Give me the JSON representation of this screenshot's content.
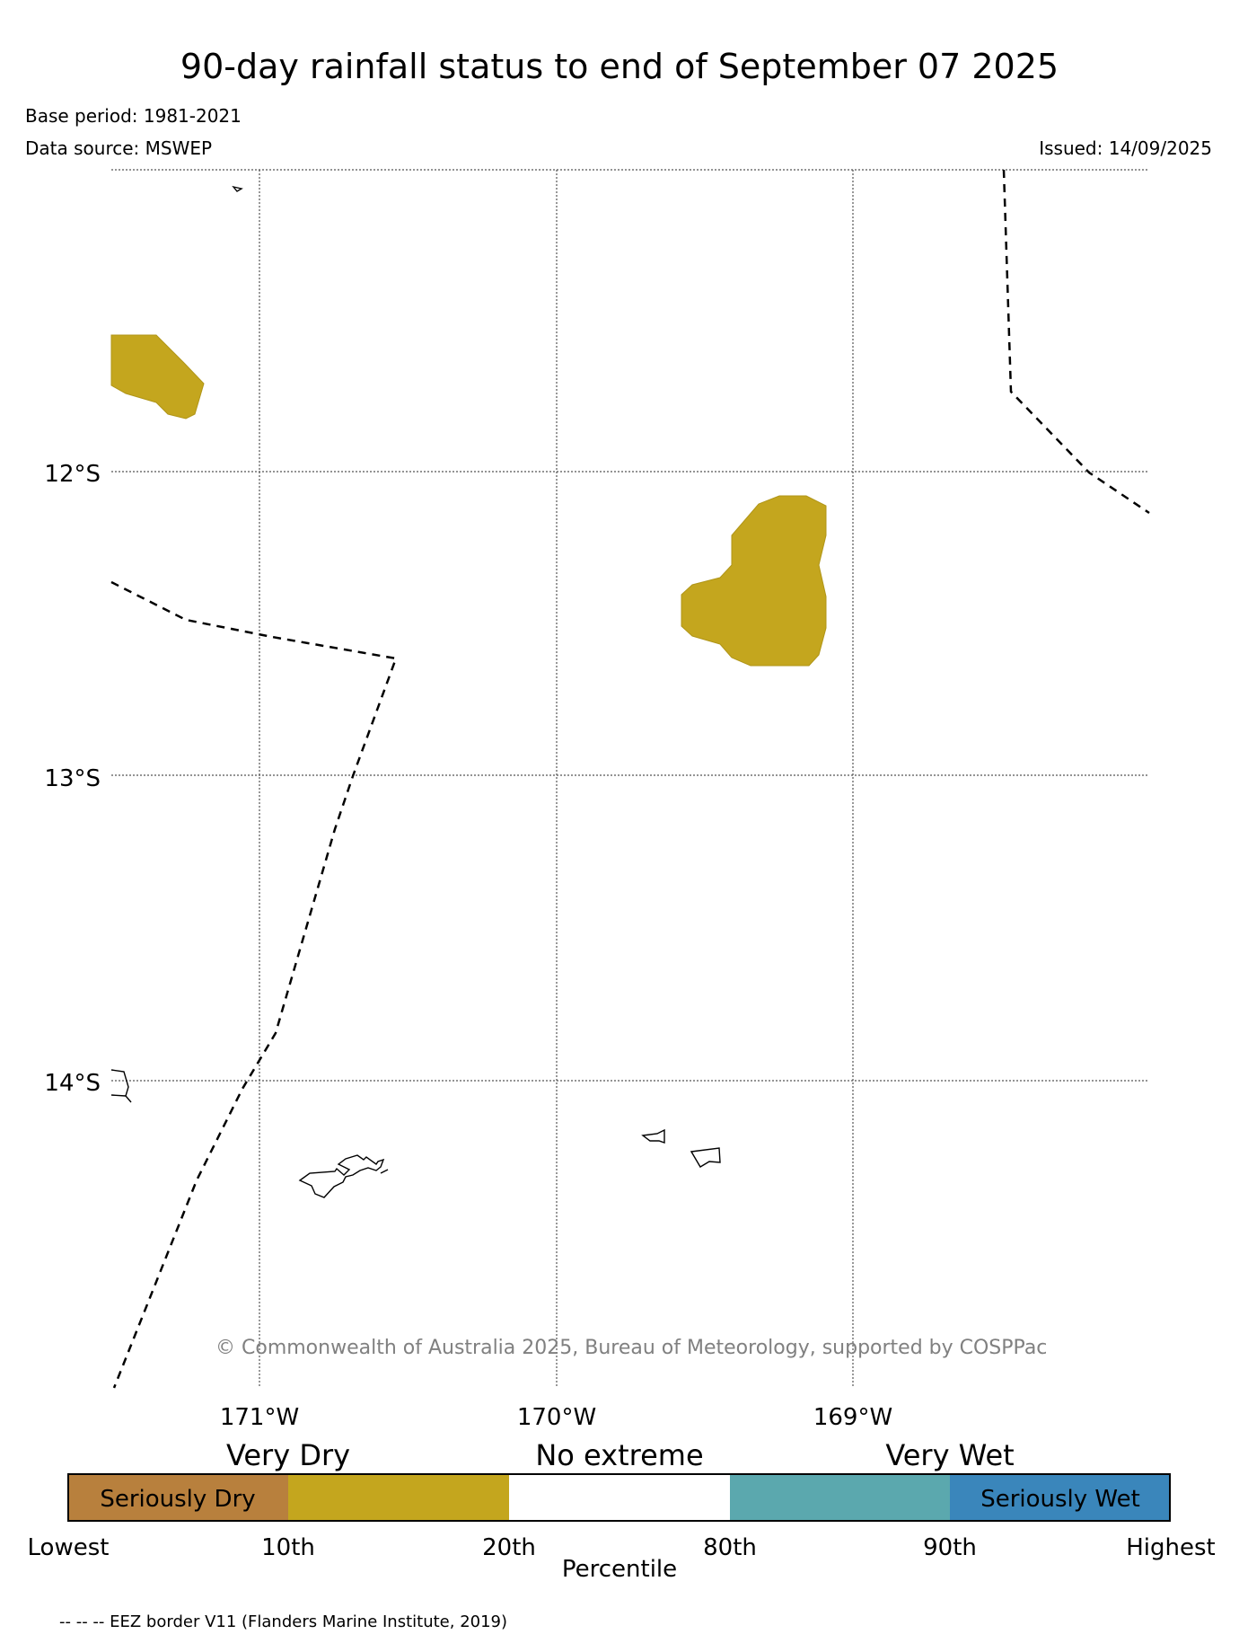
{
  "title": "90-day rainfall status to end of September 07 2025",
  "base_period": "Base period: 1981-2021",
  "data_source": "Data source: MSWEP",
  "issued": "Issued: 14/09/2025",
  "copyright": "© Commonwealth of Australia 2025, Bureau of Meteorology, supported by COSPPac",
  "latitude_labels": [
    "12°S",
    "13°S",
    "14°S"
  ],
  "longitude_labels": [
    "171°W",
    "170°W",
    "169°W"
  ],
  "legend": {
    "category_labels": [
      "Very Dry",
      "No extreme",
      "Very Wet"
    ],
    "segments": [
      {
        "label": "Seriously Dry",
        "color": "#B8803D"
      },
      {
        "label": "",
        "color": "#C4A61E"
      },
      {
        "label": "",
        "color": "#FFFFFF"
      },
      {
        "label": "",
        "color": "#5BA8AE"
      },
      {
        "label": "Seriously Wet",
        "color": "#3A86BB"
      }
    ],
    "ticks": [
      "Lowest",
      "10th",
      "20th",
      "80th",
      "90th",
      "Highest"
    ],
    "axis_label": "Percentile",
    "eez_note": "-- -- -- EEZ border V11 (Flanders Marine Institute, 2019)"
  },
  "map": {
    "lat_range": [
      "11°S",
      "15°S"
    ],
    "lon_range": [
      "171.5°W",
      "168°W"
    ],
    "dry_region_color": "#C4A61E",
    "gridlines": "dotted"
  }
}
